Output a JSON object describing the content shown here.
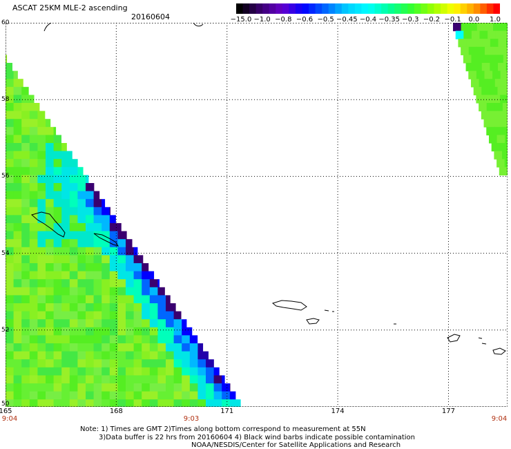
{
  "header": {
    "title": "ASCAT 25KM MLE-2 ascending",
    "date": "20160604"
  },
  "colorbar": {
    "labels": [
      "−15.0",
      "−1.0",
      "−0.8",
      "−0.6",
      "−0.5",
      "−0.45",
      "−0.4",
      "−0.35",
      "−0.3",
      "−0.2",
      "−0.1",
      "0.0",
      "1.0"
    ],
    "colors": [
      "#000000",
      "#3a0070",
      "#6600cc",
      "#0000ff",
      "#0066ff",
      "#00ccff",
      "#00ffff",
      "#00ff99",
      "#33ff33",
      "#99ff00",
      "#ffff00",
      "#ff9900",
      "#ff0000"
    ]
  },
  "map": {
    "lat_labels": [
      "60",
      "58",
      "56",
      "54",
      "52",
      "50"
    ],
    "lon_labels": [
      "165",
      "168",
      "171",
      "174",
      "177"
    ],
    "time_labels": [
      "9:04",
      "9:03",
      "9:04"
    ],
    "lat_range": [
      50,
      60
    ],
    "lon_range": [
      165,
      178.6
    ]
  },
  "footer": {
    "note_line1": "Note: 1) Times are GMT 2)Times along bottom correspond to measurement at 55N",
    "note_line2": "3)Data buffer is 22 hrs from 20160604 4) Black wind barbs indicate possible contamination",
    "credit": "NOAA/NESDIS/Center for Satellite Applications and Research"
  }
}
